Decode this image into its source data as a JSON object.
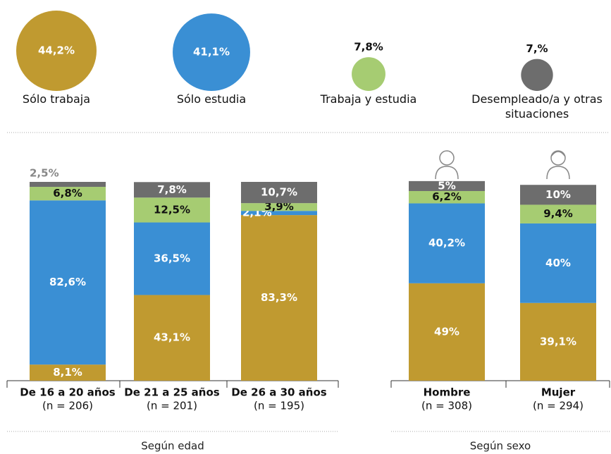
{
  "chart_data": [
    {
      "type": "bubble",
      "categories": [
        "Sólo trabaja",
        "Sólo estudia",
        "Trabaja y estudia",
        "Desempleado/a y otras situaciones"
      ],
      "values": [
        44.2,
        41.1,
        7.8,
        7
      ],
      "value_labels": [
        "44,2%",
        "41,1%",
        "7,8%",
        "7,%"
      ],
      "colors": [
        "#c09a30",
        "#3a8fd4",
        "#a6cc72",
        "#6d6d6d"
      ]
    },
    {
      "type": "stacked_bar",
      "title": "Según edad",
      "categories": [
        "De 16 a 20 años",
        "De 21 a 25 años",
        "De 26 a 30 años"
      ],
      "n_labels": [
        "(n = 206)",
        "(n = 201)",
        "(n = 195)"
      ],
      "ylim": [
        0,
        100
      ],
      "series": [
        {
          "color": "#c09a30",
          "values": [
            8.1,
            43.1,
            83.3
          ],
          "value_labels": [
            "8,1%",
            "43,1%",
            "83,3%"
          ]
        },
        {
          "color": "#3a8fd4",
          "values": [
            82.6,
            36.5,
            2.1
          ],
          "value_labels": [
            "82,6%",
            "36,5%",
            "2,1%"
          ]
        },
        {
          "color": "#a6cc72",
          "values": [
            6.8,
            12.5,
            3.9
          ],
          "value_labels": [
            "6,8%",
            "12,5%",
            "3,9%"
          ]
        },
        {
          "color": "#6d6d6d",
          "values": [
            2.5,
            7.8,
            10.7
          ],
          "value_labels": [
            "2,5%",
            "7,8%",
            "10,7%"
          ]
        }
      ]
    },
    {
      "type": "stacked_bar",
      "title": "Según sexo",
      "categories": [
        "Hombre",
        "Mujer"
      ],
      "n_labels": [
        "(n = 308)",
        "(n = 294)"
      ],
      "ylim": [
        0,
        100
      ],
      "series": [
        {
          "color": "#c09a30",
          "values": [
            49,
            39.1
          ],
          "value_labels": [
            "49%",
            "39,1%"
          ]
        },
        {
          "color": "#3a8fd4",
          "values": [
            40.2,
            40
          ],
          "value_labels": [
            "40,2%",
            "40%"
          ]
        },
        {
          "color": "#a6cc72",
          "values": [
            6.2,
            9.4
          ],
          "value_labels": [
            "6,2%",
            "9,4%"
          ]
        },
        {
          "color": "#6d6d6d",
          "values": [
            5,
            10
          ],
          "value_labels": [
            "5%",
            "10%"
          ]
        }
      ]
    }
  ]
}
